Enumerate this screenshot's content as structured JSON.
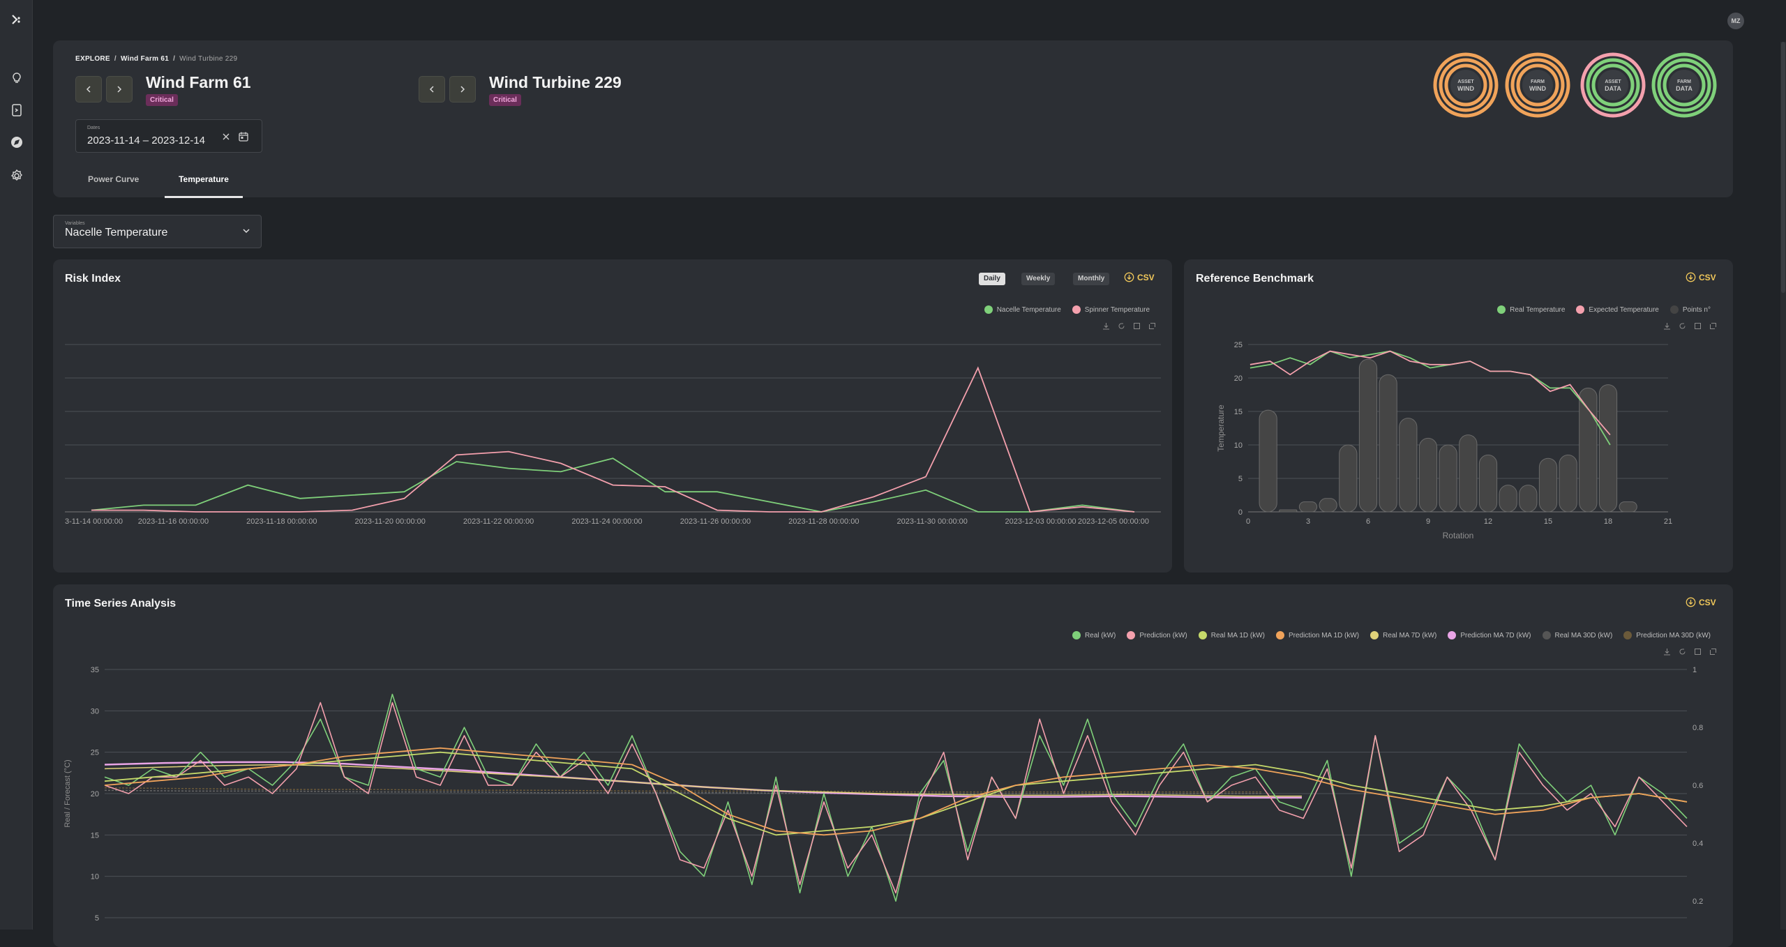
{
  "user": {
    "initials": "MZ"
  },
  "breadcrumb": {
    "root": "EXPLORE",
    "farm": "Wind Farm 61",
    "turbine": "Wind Turbine 229"
  },
  "farm": {
    "title": "Wind Farm 61",
    "status": "Critical"
  },
  "turbine": {
    "title": "Wind Turbine 229",
    "status": "Critical"
  },
  "dates": {
    "label": "Dates",
    "value": "2023-11-14 – 2023-12-14"
  },
  "tabs": [
    {
      "label": "Power Curve"
    },
    {
      "label": "Temperature"
    }
  ],
  "gauges": [
    {
      "line1": "ASSET",
      "line2": "WIND",
      "ring_color": "#f0a35a",
      "inner_color": "#f0a35a"
    },
    {
      "line1": "FARM",
      "line2": "WIND",
      "ring_color": "#f0a35a",
      "inner_color": "#f0a35a"
    },
    {
      "line1": "ASSET",
      "line2": "DATA",
      "ring_color": "#f4a0ad",
      "inner_color": "#7fd07a"
    },
    {
      "line1": "FARM",
      "line2": "DATA",
      "ring_color": "#7fd07a",
      "inner_color": "#7fd07a"
    }
  ],
  "variable": {
    "label": "Variables",
    "value": "Nacelle Temperature"
  },
  "risk": {
    "title": "Risk Index",
    "periods": [
      "Daily",
      "Weekly",
      "Monthly"
    ],
    "csv": "CSV",
    "chart_data": {
      "type": "line",
      "x": [
        "2023-11-14",
        "2023-11-15",
        "2023-11-16",
        "2023-11-17",
        "2023-11-18",
        "2023-11-19",
        "2023-11-20",
        "2023-11-21",
        "2023-11-22",
        "2023-11-23",
        "2023-11-24",
        "2023-11-25",
        "2023-11-26",
        "2023-11-27",
        "2023-11-28",
        "2023-11-29",
        "2023-11-30",
        "2023-12-01",
        "2023-12-02",
        "2023-12-03",
        "2023-12-04"
      ],
      "tick_labels": [
        "3-11-14 00:00:00",
        "2023-11-16 00:00:00",
        "2023-11-18 00:00:00",
        "2023-11-20 00:00:00",
        "2023-11-22 00:00:00",
        "2023-11-24 00:00:00",
        "2023-11-26 00:00:00",
        "2023-11-28 00:00:00",
        "2023-11-30 00:00:00",
        "2023-12-03 00:00:00",
        "2023-12-05 00:00:00"
      ],
      "ylim": [
        0,
        5
      ],
      "grid": true,
      "legend": "top-right",
      "series": [
        {
          "name": "Nacelle Temperature",
          "color": "#7fd07a",
          "values": [
            0.05,
            0.2,
            0.2,
            0.8,
            0.4,
            0.5,
            0.6,
            1.5,
            1.3,
            1.2,
            1.6,
            0.6,
            0.6,
            0.3,
            0.0,
            0.3,
            0.65,
            0.0,
            0.0,
            0.2,
            0.0
          ]
        },
        {
          "name": "Spinner Temperature",
          "color": "#f4a0ad",
          "values": [
            0.05,
            0.05,
            0.0,
            0.0,
            0.0,
            0.05,
            0.4,
            1.7,
            1.8,
            1.45,
            0.8,
            0.75,
            0.05,
            0.0,
            0.0,
            0.45,
            1.05,
            4.3,
            0.0,
            0.15,
            0.0
          ]
        }
      ]
    }
  },
  "benchmark": {
    "title": "Reference Benchmark",
    "csv": "CSV",
    "chart_data": {
      "type": "bar",
      "xlabel": "Rotation",
      "ylabel": "Temperature",
      "xlim": [
        0,
        21
      ],
      "ylim": [
        0,
        25
      ],
      "x_ticks": [
        0,
        3,
        6,
        9,
        12,
        15,
        18,
        21
      ],
      "y_ticks": [
        0,
        5,
        10,
        15,
        20,
        25
      ],
      "grid": true,
      "legend": "top-right",
      "bars": {
        "name": "Points n°",
        "x": [
          1,
          2,
          3,
          4,
          5,
          6,
          7,
          8,
          9,
          10,
          11,
          12,
          13,
          14,
          15,
          16,
          17,
          18,
          19
        ],
        "values": [
          15.2,
          0.3,
          1.5,
          2.0,
          10.0,
          22.8,
          20.5,
          14.0,
          11.0,
          10.0,
          11.5,
          8.5,
          4.0,
          4.0,
          8.0,
          8.5,
          18.5,
          19.0,
          1.5
        ]
      },
      "series": [
        {
          "name": "Real Temperature",
          "color": "#7fd07a",
          "x": [
            0,
            1,
            2,
            3,
            4,
            5,
            6,
            7,
            8,
            9,
            10,
            11,
            12,
            13,
            14,
            15,
            16,
            17,
            18
          ],
          "values": [
            21.5,
            22.0,
            23.0,
            22.0,
            24.0,
            23.0,
            23.5,
            24.0,
            23.0,
            21.5,
            22.0,
            22.5,
            21.0,
            21.0,
            20.5,
            18.5,
            18.5,
            15.0,
            10.0
          ]
        },
        {
          "name": "Expected Temperature",
          "color": "#f4a0ad",
          "x": [
            0,
            1,
            2,
            3,
            4,
            5,
            6,
            7,
            8,
            9,
            10,
            11,
            12,
            13,
            14,
            15,
            16,
            17,
            18
          ],
          "values": [
            22.0,
            22.5,
            20.5,
            22.5,
            24.0,
            23.5,
            23.0,
            24.0,
            22.5,
            22.0,
            22.0,
            22.5,
            21.0,
            21.0,
            20.5,
            18.0,
            19.0,
            15.0,
            11.5
          ]
        }
      ]
    }
  },
  "timeseries": {
    "title": "Time Series Analysis",
    "csv": "CSV",
    "chart_data": {
      "type": "line",
      "ylabel": "Real / Forecast (°C)",
      "ylim_left": [
        0,
        35
      ],
      "left_ticks": [
        5,
        10,
        15,
        20,
        25,
        30,
        35
      ],
      "right_ticks": [
        0.2,
        0.4,
        0.6,
        0.8,
        1
      ],
      "grid": true,
      "legend": "top-right",
      "series": [
        {
          "name": "Real (kW)",
          "color": "#7fd07a"
        },
        {
          "name": "Prediction (kW)",
          "color": "#f4a0ad"
        },
        {
          "name": "Real MA 1D (kW)",
          "color": "#c5d96a"
        },
        {
          "name": "Prediction MA 1D (kW)",
          "color": "#f0a35a"
        },
        {
          "name": "Real MA 7D (kW)",
          "color": "#e0d27a"
        },
        {
          "name": "Prediction MA 7D (kW)",
          "color": "#e9a4e6"
        },
        {
          "name": "Real MA 30D (kW)",
          "color": "#555555"
        },
        {
          "name": "Prediction MA 30D (kW)",
          "color": "#6b5a3a"
        }
      ],
      "keypoints": {
        "real": [
          22,
          21,
          23,
          22,
          25,
          22,
          23,
          21,
          24,
          29,
          22,
          21,
          32,
          23,
          22,
          28,
          22,
          21,
          26,
          22,
          25,
          21,
          27,
          20,
          13,
          10,
          19,
          9,
          22,
          8,
          20,
          10,
          16,
          7,
          20,
          24,
          13,
          22,
          17,
          27,
          21,
          29,
          20,
          16,
          22,
          26,
          19,
          22,
          23,
          19,
          18,
          24,
          10,
          27,
          14,
          16,
          22,
          19,
          12,
          26,
          22,
          19,
          21,
          15,
          22,
          20,
          17
        ],
        "pred": [
          21,
          20,
          22,
          22,
          24,
          21,
          22,
          20,
          23,
          31,
          22,
          20,
          31,
          22,
          21,
          27,
          21,
          21,
          25,
          22,
          24,
          20,
          26,
          20,
          12,
          11,
          18,
          10,
          21,
          9,
          19,
          11,
          15,
          8,
          19,
          25,
          12,
          22,
          17,
          29,
          20,
          27,
          19,
          15,
          21,
          25,
          19,
          21,
          22,
          18,
          17,
          23,
          11,
          27,
          13,
          15,
          22,
          18,
          12,
          25,
          21,
          18,
          20,
          16,
          22,
          19,
          16
        ],
        "ma1d_real": [
          21.5,
          22,
          22.5,
          23,
          23.5,
          24,
          24.5,
          25,
          24.5,
          24,
          23.5,
          23,
          20,
          17,
          15,
          15.5,
          16,
          17,
          19,
          21,
          21.5,
          22,
          22.5,
          23,
          23.5,
          22.5,
          21,
          20,
          19,
          18,
          18.5,
          19.5,
          20,
          19
        ],
        "ma1d_pred": [
          21,
          21.5,
          22,
          23,
          23.5,
          24.5,
          25,
          25.5,
          25,
          24.5,
          24,
          23.5,
          21,
          17.5,
          15.5,
          15,
          15.5,
          17,
          19.5,
          21,
          22,
          22.5,
          23,
          23.5,
          23,
          22,
          20.5,
          19.5,
          18.5,
          17.5,
          18,
          19.5,
          20,
          19
        ],
        "ma7d_real": [
          23,
          23.2,
          23.4,
          23.5,
          23.3,
          23,
          22.6,
          22.2,
          21.8,
          21.3,
          20.8,
          20.4,
          20.2,
          20,
          19.9,
          19.8,
          19.8,
          19.9,
          19.8,
          19.7,
          19.7
        ],
        "ma7d_pred": [
          23.5,
          23.7,
          23.8,
          23.8,
          23.6,
          23.2,
          22.8,
          22.3,
          21.8,
          21.3,
          20.8,
          20.4,
          20.1,
          19.9,
          19.7,
          19.6,
          19.6,
          19.7,
          19.6,
          19.5,
          19.5
        ],
        "ma30d_real": [
          20.4,
          20.3,
          20.3,
          20.2,
          20.2,
          20.1,
          20.1,
          20.1,
          20.0,
          20.0,
          20.0,
          20.0,
          20.0,
          20.0
        ],
        "ma30d_pred": [
          20.7,
          20.6,
          20.5,
          20.5,
          20.4,
          20.4,
          20.3,
          20.3,
          20.3,
          20.2,
          20.2,
          20.2,
          20.2,
          20.2
        ]
      }
    }
  }
}
